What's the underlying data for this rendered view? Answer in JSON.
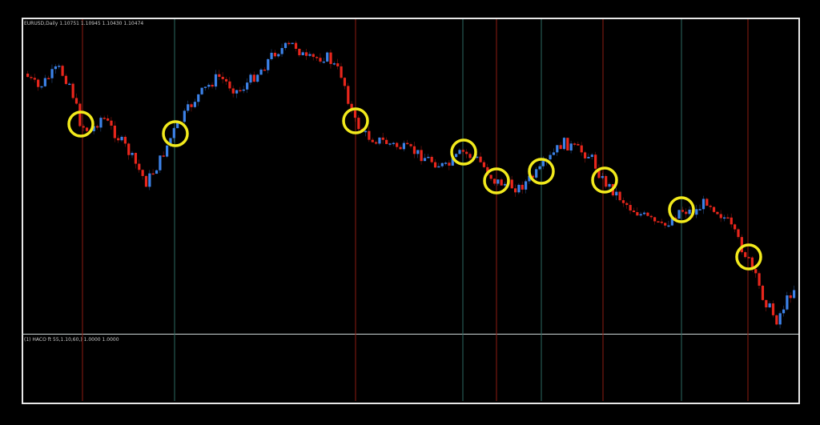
{
  "chart_header": {
    "symbol": "EURUSD,Daily",
    "open": "1.10751",
    "high": "1.10945",
    "low": "1.10430",
    "close": "1.10474"
  },
  "indicator_header": {
    "label": "(1) HACO ft 55,1.10,60,)",
    "value1": "1.0000",
    "value2": "1.0000"
  },
  "colors": {
    "background": "#000000",
    "bull_candle": "#3c82e8",
    "bear_candle": "#e8261c",
    "sell_signal_line": "#8e1c12",
    "buy_signal_line": "#2c6a62",
    "highlight_circle": "#f2ea1c",
    "frame": "#e8e8e8"
  },
  "chart_data": {
    "type": "candlestick",
    "title": "",
    "signals": [
      "sell",
      "buy",
      "sell",
      "buy",
      "sell",
      "buy",
      "sell",
      "buy",
      "sell"
    ],
    "highlighted_signals": 9
  }
}
